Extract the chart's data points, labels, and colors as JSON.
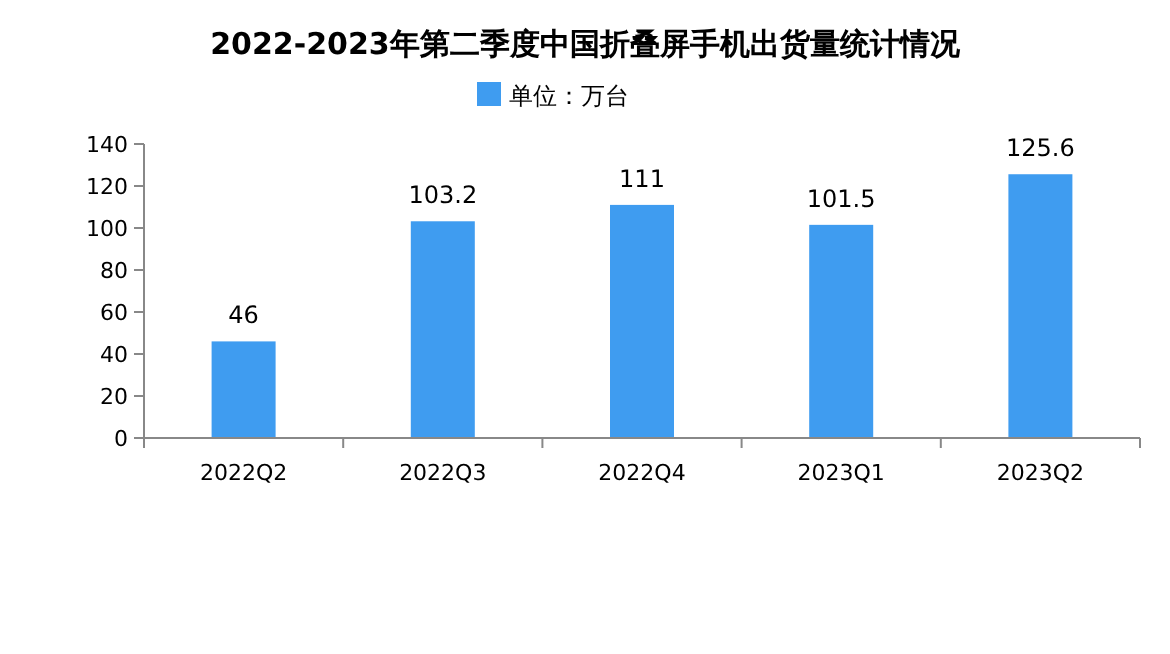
{
  "chart_data": {
    "type": "bar",
    "title": "2022-2023年第二季度中国折叠屏手机出货量统计情况",
    "categories": [
      "2022Q2",
      "2022Q3",
      "2022Q4",
      "2023Q1",
      "2023Q2"
    ],
    "series": [
      {
        "name": "单位：万台",
        "color": "#3f9cf0",
        "values": [
          46,
          103.2,
          111,
          101.5,
          125.6
        ]
      }
    ],
    "ylim": [
      0,
      140
    ],
    "yticks": [
      0,
      20,
      40,
      60,
      80,
      100,
      120,
      140
    ],
    "grid": false,
    "legend": "top",
    "data_labels": true
  }
}
